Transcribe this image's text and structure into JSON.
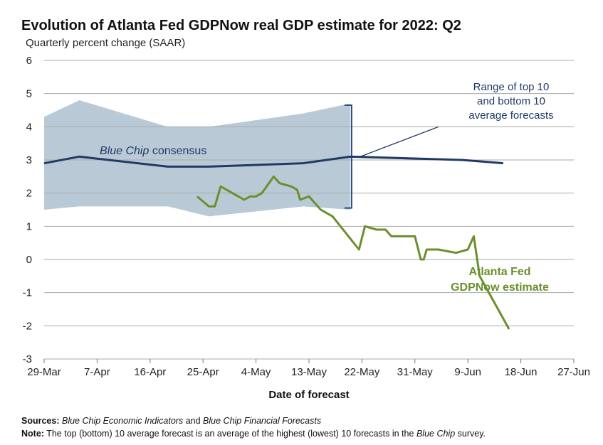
{
  "chart_data": {
    "type": "line",
    "title": "Evolution of Atlanta Fed GDPNow real GDP estimate for 2022: Q2",
    "subtitle": "Quarterly percent change (SAAR)",
    "xlabel": "Date of forecast",
    "ylabel": "",
    "ylim": [
      -3,
      6
    ],
    "yticks": [
      "-3",
      "-2",
      "-1",
      "0",
      "1",
      "2",
      "3",
      "4",
      "5",
      "6"
    ],
    "xticks": [
      "29-Mar",
      "7-Apr",
      "16-Apr",
      "25-Apr",
      "4-May",
      "13-May",
      "22-May",
      "31-May",
      "9-Jun",
      "18-Jun",
      "27-Jun"
    ],
    "grid": "horizontal",
    "series": [
      {
        "name": "Blue Chip consensus",
        "label_prefix": "Blue Chip",
        "label_suffix": " consensus",
        "color": "#1f3a64",
        "x": [
          0,
          6,
          21,
          28,
          44,
          52,
          71,
          78
        ],
        "values": [
          2.9,
          3.1,
          2.8,
          2.8,
          2.9,
          3.1,
          3.0,
          2.9
        ]
      },
      {
        "name": "Atlanta Fed GDPNow estimate",
        "label_lines": [
          "Atlanta Fed",
          "GDPNow estimate"
        ],
        "color": "#6a8f2e",
        "x": [
          26,
          28,
          29,
          30,
          32,
          33,
          34,
          35,
          36,
          37,
          39,
          40,
          41,
          42,
          42.5,
          43,
          43.5,
          45,
          46,
          47,
          49,
          53.5,
          54.5,
          55.5,
          56.5,
          58,
          59,
          60,
          62,
          63,
          64,
          64.5,
          65,
          66,
          67,
          70,
          72,
          73,
          74,
          79
        ],
        "values": [
          1.9,
          1.6,
          1.6,
          2.2,
          2.0,
          1.9,
          1.8,
          1.9,
          1.9,
          2.0,
          2.5,
          2.3,
          2.25,
          2.2,
          2.15,
          2.1,
          1.8,
          1.9,
          1.7,
          1.5,
          1.3,
          0.3,
          1.0,
          0.95,
          0.9,
          0.9,
          0.7,
          0.7,
          0.7,
          0.7,
          0.0,
          0.0,
          0.3,
          0.3,
          0.3,
          0.2,
          0.3,
          0.7,
          -0.5,
          -2.1
        ]
      }
    ],
    "range_band": {
      "name": "Range of top 10 and bottom 10 average forecasts",
      "label_lines": [
        "Range of top 10",
        "and bottom 10",
        "average forecasts"
      ],
      "color": "#b9cad6",
      "x": [
        0,
        6,
        21,
        28,
        44,
        52
      ],
      "upper": [
        4.3,
        4.8,
        4.0,
        4.0,
        4.4,
        4.7
      ],
      "lower": [
        1.5,
        1.6,
        1.6,
        1.3,
        1.6,
        1.5
      ]
    }
  },
  "footer": {
    "sources_label": "Sources:",
    "sources_a": "Blue Chip Economic Indicators",
    "sources_and": "and",
    "sources_b": "Blue Chip Financial Forecasts",
    "note_label": "Note:",
    "note_text": "The top (bottom) 10 average forecast is an average of the highest (lowest) 10 forecasts in the",
    "note_italic": "Blue Chip",
    "note_end": "survey."
  }
}
